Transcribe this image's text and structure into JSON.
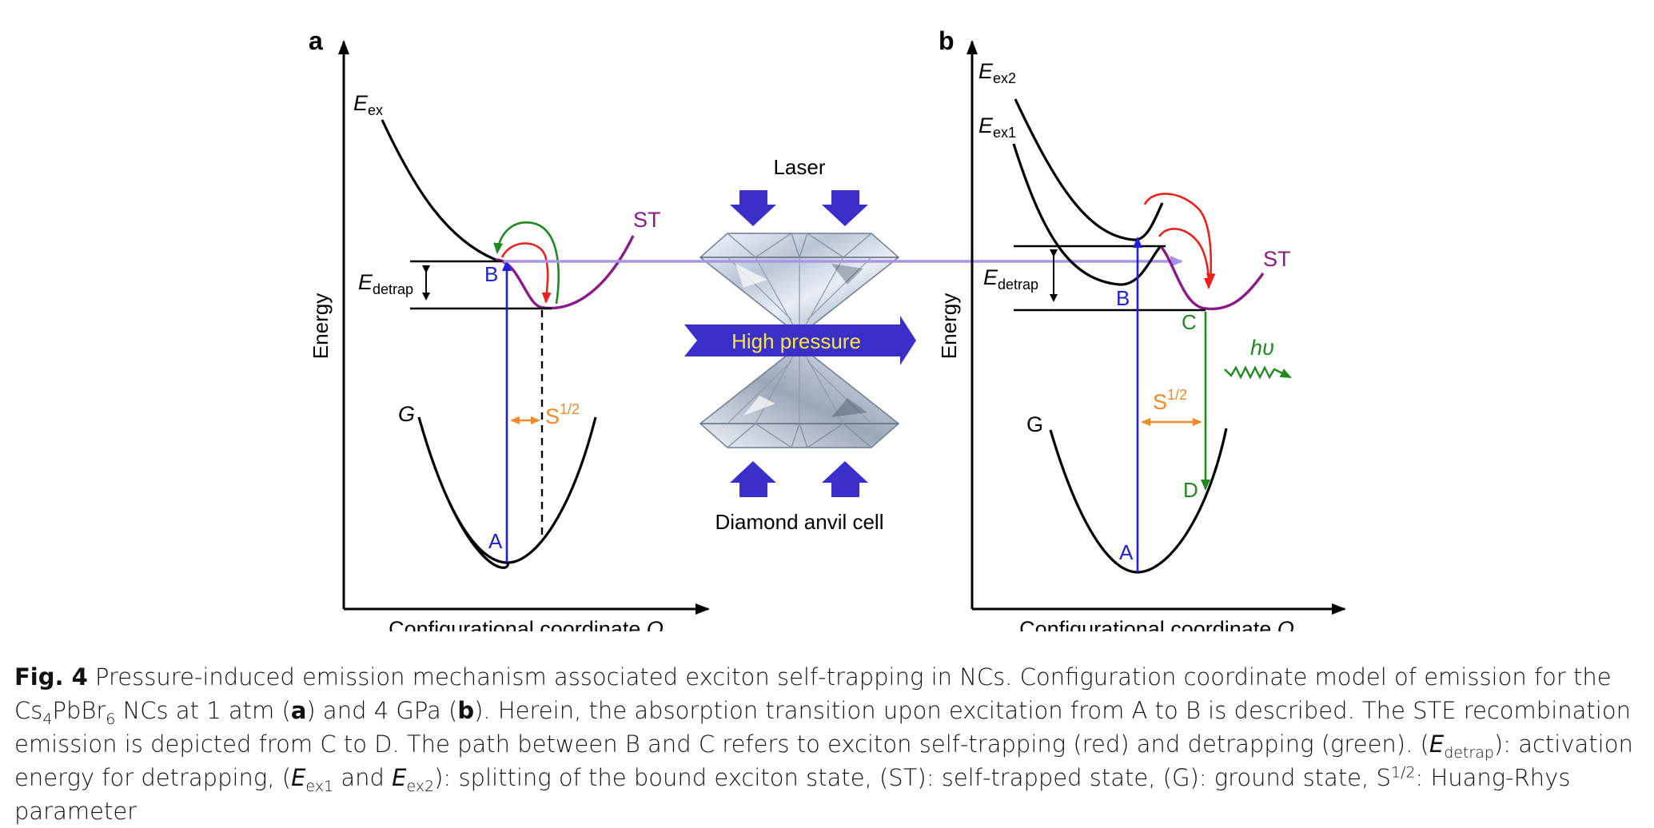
{
  "figure": {
    "panel_a": {
      "panel_label": "a",
      "y_axis_label": "Energy",
      "x_axis_label": "Configurational coordinate",
      "x_axis_symbol": "Q",
      "e_ex_main": "E",
      "e_ex_sub": "ex",
      "g_label": "G",
      "st_label": "ST",
      "e_detrap_main": "E",
      "e_detrap_sub": "detrap",
      "point_b": "B",
      "point_a": "A",
      "s_main": "S",
      "s_sup": "1/2"
    },
    "center": {
      "laser_label": "Laser",
      "pressure_label": "High pressure",
      "dac_label": "Diamond anvil cell"
    },
    "panel_b": {
      "panel_label": "b",
      "y_axis_label": "Energy",
      "x_axis_label": "Configurational coordinate",
      "x_axis_symbol": "Q",
      "e_ex2_main": "E",
      "e_ex2_sub": "ex2",
      "e_ex1_main": "E",
      "e_ex1_sub": "ex1",
      "g_label": "G",
      "st_label": "ST",
      "e_detrap_main": "E",
      "e_detrap_sub": "detrap",
      "point_b": "B",
      "point_a": "A",
      "point_c": "C",
      "point_d": "D",
      "s_main": "S",
      "s_sup": "1/2",
      "hv_label": "hυ"
    }
  },
  "caption": {
    "fig_label": "Fig. 4",
    "t1": " Pressure-induced emission mechanism associated exciton self-trapping in NCs. Configuration coordinate model of emission for the Cs",
    "cs_sub": "4",
    "t2": "PbBr",
    "br_sub": "6",
    "t3": " NCs at 1 atm (",
    "a_ref": "a",
    "t4": ") and 4 GPa (",
    "b_ref": "b",
    "t5": "). Herein, the absorption transition upon excitation from A to B is described. The STE recombination emission is depicted from C to D. The path between B and C refers to exciton self-trapping (red) and detrapping (green). (",
    "ed_main": "E",
    "ed_sub": "detrap",
    "t6": "): activation energy for detrapping, (",
    "e1_main": "E",
    "e1_sub": "ex1",
    "t7": " and ",
    "e2_main": "E",
    "e2_sub": "ex2",
    "t8": "): splitting of the bound exciton state, (ST): self-trapped state, (G): ground state, S",
    "s_sup": "1/2",
    "t9": ": Huang-Rhys parameter"
  },
  "colors": {
    "blue_arrow": "#1f1fd6",
    "red_arrow": "#e8231c",
    "green_arrow": "#1f8a1f",
    "purple_curve": "#8a1a8a",
    "orange_arrow": "#f08a24",
    "laser_line": "#a995e6",
    "pressure_arrow": "#3a2fc9",
    "pressure_text": "#f5e642"
  }
}
